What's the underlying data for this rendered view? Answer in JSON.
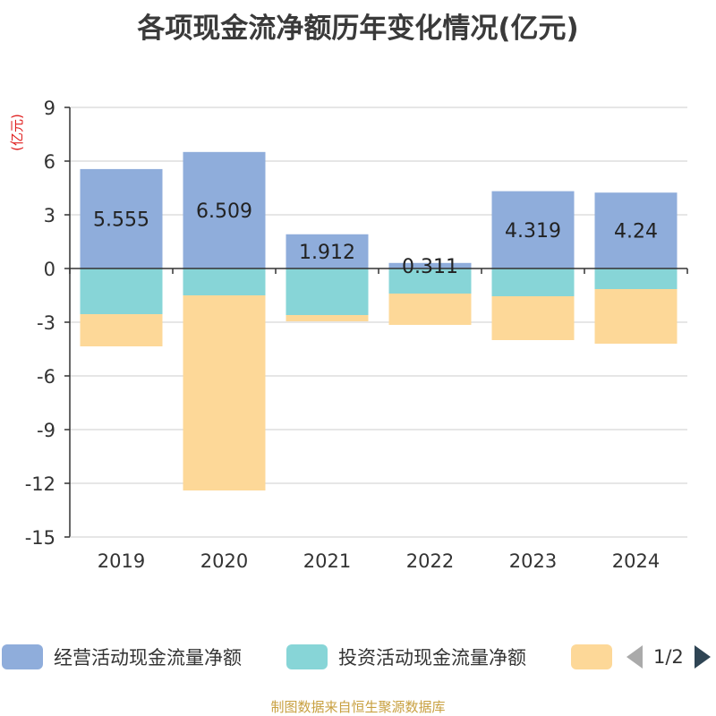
{
  "chart_data": {
    "type": "bar",
    "stacked": true,
    "title": "各项现金流净额历年变化情况(亿元)",
    "ylabel": "(亿元)",
    "categories": [
      "2019",
      "2020",
      "2021",
      "2022",
      "2023",
      "2024"
    ],
    "ylim": [
      -15,
      9
    ],
    "yticks": [
      9,
      6,
      3,
      0,
      -3,
      -6,
      -9,
      -12,
      -15
    ],
    "grid": true,
    "legend_position": "bottom",
    "series": [
      {
        "name": "经营活动现金流量净额",
        "color": "#8faddb",
        "values": [
          5.555,
          6.509,
          1.912,
          0.311,
          4.319,
          4.24
        ],
        "labels": [
          "5.555",
          "6.509",
          "1.912",
          "0.311",
          "4.319",
          "4.24"
        ]
      },
      {
        "name": "投资活动现金流量净额",
        "color": "#87d5d7",
        "values": [
          -2.55,
          -1.5,
          -2.6,
          -1.4,
          -1.55,
          -1.15
        ]
      },
      {
        "name": "",
        "color": "#fdd898",
        "values": [
          -1.8,
          -10.9,
          -0.35,
          -1.75,
          -2.45,
          -3.05
        ]
      }
    ]
  },
  "legend": {
    "items": [
      {
        "label": "经营活动现金流量净额",
        "color": "#8faddb"
      },
      {
        "label": "投资活动现金流量净额",
        "color": "#87d5d7"
      },
      {
        "label": "",
        "color": "#fdd898"
      }
    ],
    "pager_text": "1/2"
  },
  "footer": {
    "source_note": "制图数据来自恒生聚源数据库"
  }
}
